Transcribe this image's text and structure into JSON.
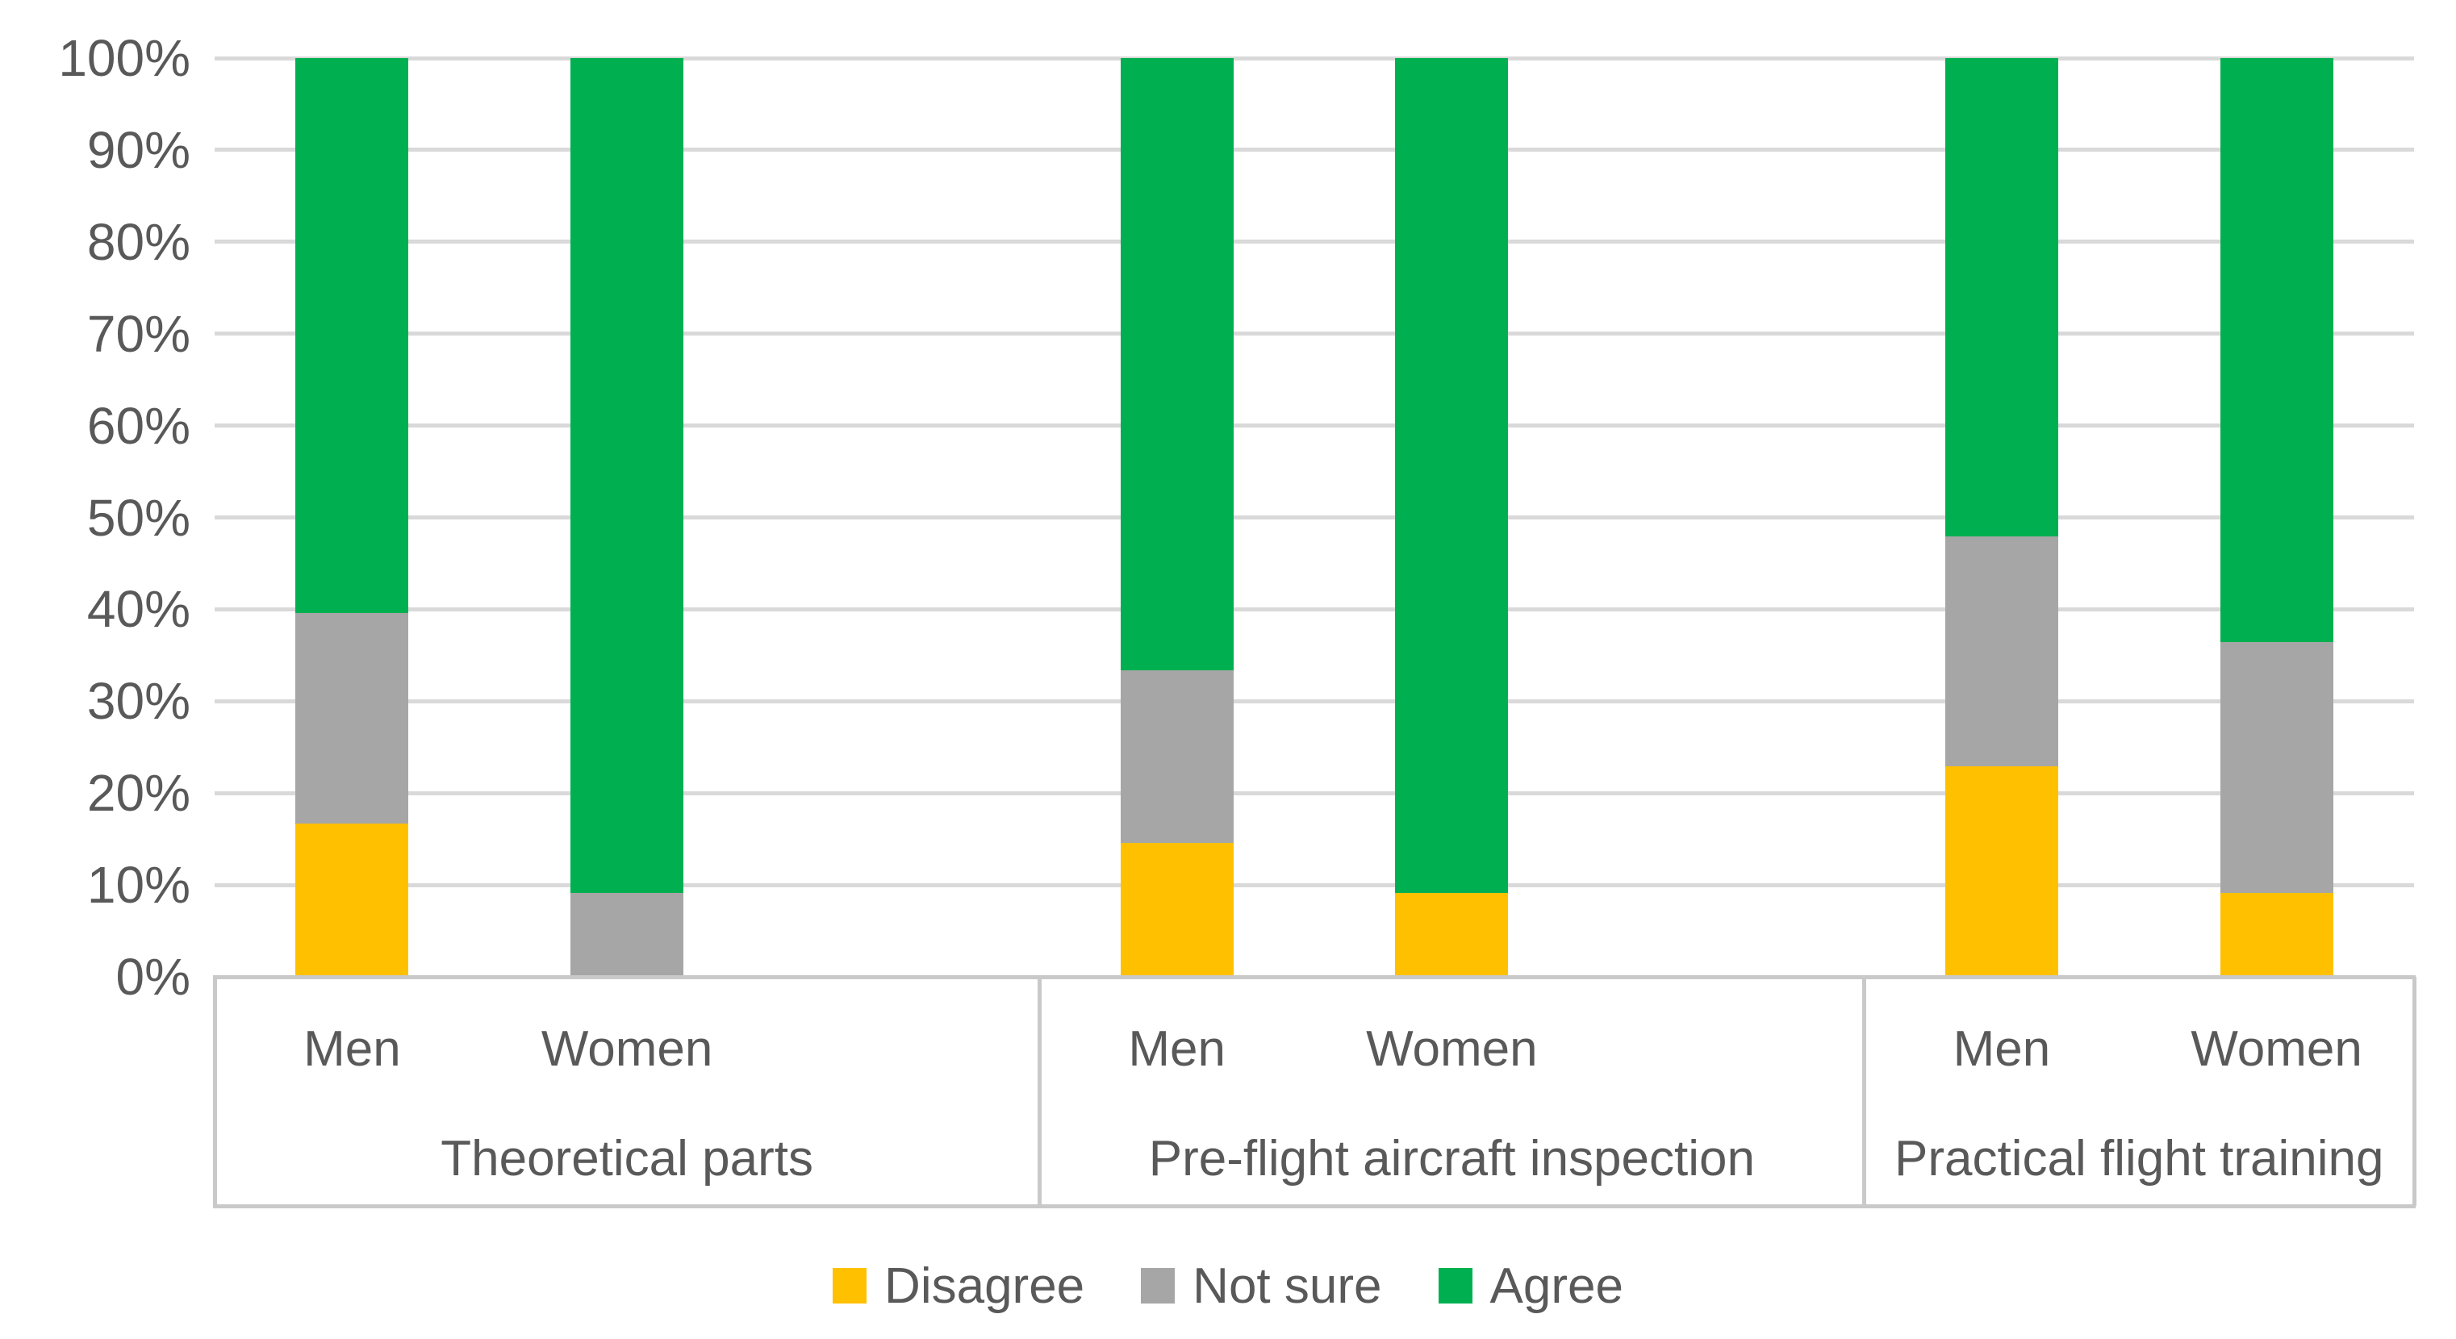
{
  "chart_data": {
    "type": "bar",
    "subtype": "100-percent-stacked-column",
    "grid": true,
    "legend_position": "bottom",
    "y_axis": {
      "min": 0,
      "max": 100,
      "tick_step": 10,
      "ticks": [
        "0%",
        "10%",
        "20%",
        "30%",
        "40%",
        "50%",
        "60%",
        "70%",
        "80%",
        "90%",
        "100%"
      ]
    },
    "group_labels": [
      "Theoretical parts",
      "Pre-flight aircraft inspection",
      "Practical flight training"
    ],
    "categories": [
      "Men",
      "Women",
      "Men",
      "Women",
      "Men",
      "Women"
    ],
    "series": [
      {
        "name": "Disagree",
        "color": "#FFC000",
        "values": [
          16.7,
          0,
          14.6,
          9.1,
          22.9,
          9.1
        ]
      },
      {
        "name": "Not sure",
        "color": "#A6A6A6",
        "values": [
          22.9,
          9.1,
          18.8,
          0,
          25.0,
          27.3
        ]
      },
      {
        "name": "Agree",
        "color": "#00B050",
        "values": [
          60.4,
          90.9,
          66.6,
          90.9,
          52.1,
          63.6
        ]
      }
    ],
    "colors": {
      "gridline": "#D9D9D9",
      "axis_box_border": "#C9C9C9",
      "label_text": "#595959",
      "background": "#FFFFFF"
    }
  }
}
